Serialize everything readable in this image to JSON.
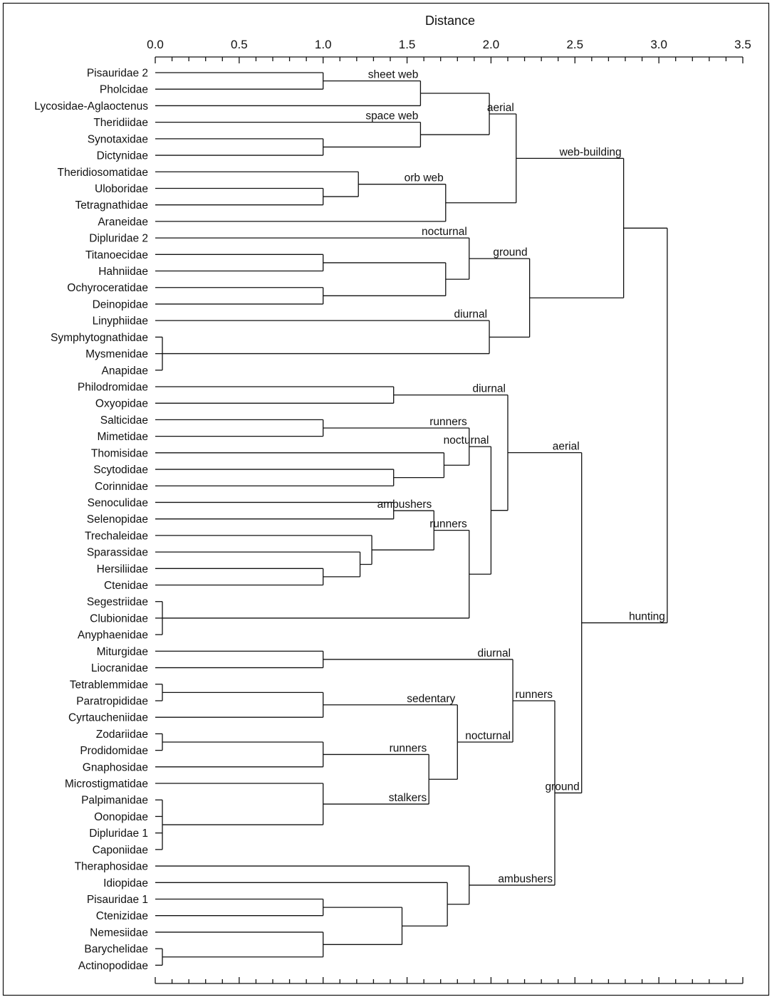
{
  "axis": {
    "title": "Distance",
    "ticks": [
      "0.0",
      "0.5",
      "1.0",
      "1.5",
      "2.0",
      "2.5",
      "3.0",
      "3.5"
    ],
    "min": 0,
    "max": 3.5
  },
  "leaves": [
    "Pisauridae 2",
    "Pholcidae",
    "Lycosidae-Aglaoctenus",
    "Theridiidae",
    "Synotaxidae",
    "Dictynidae",
    "Theridiosomatidae",
    "Uloboridae",
    "Tetragnathidae",
    "Araneidae",
    "Dipluridae 2",
    "Titanoecidae",
    "Hahniidae",
    "Ochyroceratidae",
    "Deinopidae",
    "Linyphiidae",
    "Symphytognathidae",
    "Mysmenidae",
    "Anapidae",
    "Philodromidae",
    "Oxyopidae",
    "Salticidae",
    "Mimetidae",
    "Thomisidae",
    "Scytodidae",
    "Corinnidae",
    "Senoculidae",
    "Selenopidae",
    "Trechaleidae",
    "Sparassidae",
    "Hersiliidae",
    "Ctenidae",
    "Segestriidae",
    "Clubionidae",
    "Anyphaenidae",
    "Miturgidae",
    "Liocranidae",
    "Tetrablemmidae",
    "Paratropididae",
    "Cyrtaucheniidae",
    "Zodariidae",
    "Prodidomidae",
    "Gnaphosidae",
    "Microstigmatidae",
    "Palpimanidae",
    "Oonopidae",
    "Dipluridae 1",
    "Caponiidae",
    "Theraphosidae",
    "Idiopidae",
    "Pisauridae 1",
    "Ctenizidae",
    "Nemesiidae",
    "Barychelidae",
    "Actinopodidae"
  ],
  "merges": [
    {
      "id": "a1",
      "children": [
        "L0",
        "L1"
      ],
      "distance": 1.0
    },
    {
      "id": "a2",
      "children": [
        "a1",
        "L2"
      ],
      "distance": 1.58,
      "label": "sheet web"
    },
    {
      "id": "a3",
      "children": [
        "L4",
        "L5"
      ],
      "distance": 1.0
    },
    {
      "id": "a4",
      "children": [
        "L3",
        "a3"
      ],
      "distance": 1.58,
      "label": "space web"
    },
    {
      "id": "a5",
      "children": [
        "a2",
        "a4"
      ],
      "distance": 1.99
    },
    {
      "id": "a6",
      "children": [
        "L7",
        "L8"
      ],
      "distance": 1.0
    },
    {
      "id": "a7",
      "children": [
        "L6",
        "a6"
      ],
      "distance": 1.21
    },
    {
      "id": "a8",
      "children": [
        "a7",
        "L9"
      ],
      "distance": 1.73,
      "label": "orb web"
    },
    {
      "id": "a9",
      "children": [
        "a5",
        "a8"
      ],
      "distance": 2.15,
      "label": "aerial"
    },
    {
      "id": "a10",
      "children": [
        "L11",
        "L12"
      ],
      "distance": 1.0
    },
    {
      "id": "a11",
      "children": [
        "L13",
        "L14"
      ],
      "distance": 1.0
    },
    {
      "id": "a12",
      "children": [
        "a10",
        "a11"
      ],
      "distance": 1.73
    },
    {
      "id": "a13",
      "children": [
        "L10",
        "a12"
      ],
      "distance": 1.87,
      "label": "nocturnal"
    },
    {
      "id": "a14",
      "children": [
        "L16",
        "L17",
        "L18"
      ],
      "distance": 0.03
    },
    {
      "id": "a15",
      "children": [
        "L15",
        "a14"
      ],
      "distance": 1.99,
      "label": "diurnal"
    },
    {
      "id": "a16",
      "children": [
        "a13",
        "a15"
      ],
      "distance": 2.23,
      "label": "ground"
    },
    {
      "id": "a17",
      "children": [
        "a9",
        "a16"
      ],
      "distance": 2.79,
      "label": "web-building"
    },
    {
      "id": "b1",
      "children": [
        "L19",
        "L20"
      ],
      "distance": 1.42
    },
    {
      "id": "b2",
      "children": [
        "L21",
        "L22"
      ],
      "distance": 1.0
    },
    {
      "id": "b3",
      "children": [
        "L24",
        "L25"
      ],
      "distance": 1.42
    },
    {
      "id": "b4",
      "children": [
        "L23",
        "b3"
      ],
      "distance": 1.72
    },
    {
      "id": "b5",
      "children": [
        "b2",
        "b4"
      ],
      "distance": 1.87,
      "label": "runners"
    },
    {
      "id": "b6",
      "children": [
        "L26",
        "L27"
      ],
      "distance": 1.42
    },
    {
      "id": "b7",
      "children": [
        "L30",
        "L31"
      ],
      "distance": 1.0
    },
    {
      "id": "b8",
      "children": [
        "L29",
        "b7"
      ],
      "distance": 1.22
    },
    {
      "id": "b9",
      "children": [
        "L28",
        "b8"
      ],
      "distance": 1.29
    },
    {
      "id": "b10",
      "children": [
        "b6",
        "b9"
      ],
      "distance": 1.66,
      "label": "ambushers"
    },
    {
      "id": "b11",
      "children": [
        "L32",
        "L33",
        "L34"
      ],
      "distance": 0.03
    },
    {
      "id": "b12",
      "children": [
        "b10",
        "b11"
      ],
      "distance": 1.87,
      "label": "runners"
    },
    {
      "id": "b13",
      "children": [
        "b5",
        "b12"
      ],
      "distance": 2.0,
      "label": "nocturnal"
    },
    {
      "id": "b14",
      "children": [
        "b1",
        "b13"
      ],
      "distance": 2.1,
      "label": "diurnal"
    },
    {
      "id": "c1",
      "children": [
        "L35",
        "L36"
      ],
      "distance": 1.0
    },
    {
      "id": "c2",
      "children": [
        "L37",
        "L38"
      ],
      "distance": 0.03
    },
    {
      "id": "c3",
      "children": [
        "c2",
        "L39"
      ],
      "distance": 1.0
    },
    {
      "id": "c4",
      "children": [
        "L40",
        "L41"
      ],
      "distance": 0.03
    },
    {
      "id": "c5",
      "children": [
        "c4",
        "L42"
      ],
      "distance": 1.0
    },
    {
      "id": "c6",
      "children": [
        "L44",
        "L45",
        "L46",
        "L47"
      ],
      "distance": 0.03
    },
    {
      "id": "c7",
      "children": [
        "L43",
        "c6"
      ],
      "distance": 1.0
    },
    {
      "id": "c8",
      "children": [
        "c5",
        "c7"
      ],
      "distance": 1.63,
      "label": "runners",
      "label2": "stalkers"
    },
    {
      "id": "c9",
      "children": [
        "c3",
        "c8"
      ],
      "distance": 1.8,
      "label": "sedentary"
    },
    {
      "id": "c10",
      "children": [
        "c1",
        "c9"
      ],
      "distance": 2.13,
      "label": "diurnal",
      "label2": "nocturnal"
    },
    {
      "id": "c11",
      "children": [
        "L50",
        "L51"
      ],
      "distance": 1.0
    },
    {
      "id": "c12",
      "children": [
        "L53",
        "L54"
      ],
      "distance": 0.03
    },
    {
      "id": "c13",
      "children": [
        "L52",
        "c12"
      ],
      "distance": 1.0
    },
    {
      "id": "c14",
      "children": [
        "c11",
        "c13"
      ],
      "distance": 1.47
    },
    {
      "id": "c15",
      "children": [
        "L49",
        "c14"
      ],
      "distance": 1.74
    },
    {
      "id": "c16",
      "children": [
        "L48",
        "c15"
      ],
      "distance": 1.87
    },
    {
      "id": "c17",
      "children": [
        "c10",
        "c16"
      ],
      "distance": 2.38,
      "label": "runners",
      "label2": "ambushers"
    },
    {
      "id": "d1",
      "children": [
        "b14",
        "c17"
      ],
      "distance": 2.54,
      "label": "aerial",
      "label2": "ground"
    },
    {
      "id": "r",
      "children": [
        "a17",
        "d1"
      ],
      "distance": 3.05,
      "label2": "hunting"
    }
  ]
}
